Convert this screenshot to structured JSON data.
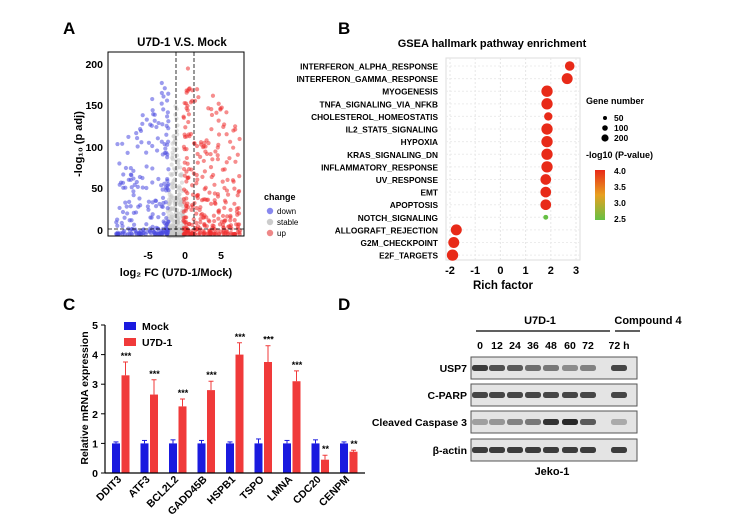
{
  "panel_letters": {
    "A": "A",
    "B": "B",
    "C": "C",
    "D": "D"
  },
  "volcano": {
    "title": "U7D-1 V.S. Mock",
    "xlabel": "log₂ FC (U7D-1/Mock)",
    "ylabel": "-log₁₀ (p adj)",
    "xticks": [
      "-5",
      "0",
      "5"
    ],
    "yticks": [
      "0",
      "50",
      "100",
      "150",
      "200"
    ],
    "legend_title": "change",
    "legend": [
      {
        "label": "down",
        "color": "#4444dd"
      },
      {
        "label": "stable",
        "color": "#bbbbbb"
      },
      {
        "label": "up",
        "color": "#ee3333"
      }
    ]
  },
  "gsea": {
    "title": "GSEA hallmark pathway enrichment",
    "xlabel": "Rich factor",
    "xticks": [
      "-2",
      "-1",
      "0",
      "1",
      "2",
      "3"
    ],
    "size_legend_title": "Gene number",
    "size_legend": [
      "50",
      "100",
      "200"
    ],
    "color_legend_title": "-log10 (P-value)",
    "color_legend_ticks": [
      "4.0",
      "3.5",
      "3.0",
      "2.5"
    ]
  },
  "qpcr": {
    "ylabel": "Relative mRNA expression",
    "yticks": [
      "0",
      "1",
      "2",
      "3",
      "4",
      "5"
    ],
    "legend": [
      {
        "label": "Mock",
        "color": "#1a1adf"
      },
      {
        "label": "U7D-1",
        "color": "#f03a3a"
      }
    ]
  },
  "blot": {
    "group_labels": [
      "U7D-1",
      "Compound 4"
    ],
    "timepoints": [
      "0",
      "12",
      "24",
      "36",
      "48",
      "60",
      "72",
      "72 h"
    ],
    "rows": [
      "USP7",
      "C-PARP",
      "Cleaved Caspase 3",
      "β-actin"
    ],
    "cell_line": "Jeko-1"
  },
  "chart_data": [
    {
      "type": "scatter",
      "title": "U7D-1 V.S. Mock",
      "xlabel": "log2 FC (U7D-1/Mock)",
      "ylabel": "-log10 (p adj)",
      "xlim": [
        -9,
        9
      ],
      "ylim": [
        0,
        210
      ],
      "series": [
        {
          "name": "down"
        },
        {
          "name": "stable"
        },
        {
          "name": "up"
        }
      ]
    },
    {
      "type": "scatter",
      "title": "GSEA hallmark pathway enrichment",
      "xlabel": "Rich factor",
      "xlim": [
        -2,
        3
      ],
      "categories": [
        "INTERFERON_ALPHA_RESPONSE",
        "INTERFERON_GAMMA_RESPONSE",
        "MYOGENESIS",
        "TNFA_SIGNALING_VIA_NFKB",
        "CHOLESTEROL_HOMEOSTATIS",
        "IL2_STAT5_SIGNALING",
        "HYPOXIA",
        "KRAS_SIGNALING_DN",
        "INFLAMMATORY_RESPONSE",
        "UV_RESPONSE",
        "EMT",
        "APOPTOSIS",
        "NOTCH_SIGNALING",
        "ALLOGRAFT_REJECTION",
        "G2M_CHECKPOINT",
        "E2F_TARGETS"
      ],
      "values": [
        2.75,
        2.65,
        1.85,
        1.85,
        1.9,
        1.85,
        1.85,
        1.85,
        1.85,
        1.8,
        1.8,
        1.8,
        1.8,
        -1.75,
        -1.85,
        -1.9
      ],
      "sizes": [
        100,
        140,
        150,
        150,
        70,
        150,
        150,
        150,
        150,
        130,
        130,
        130,
        15,
        140,
        140,
        150
      ],
      "neglog10p": [
        4.0,
        4.0,
        4.0,
        4.0,
        4.0,
        4.0,
        4.0,
        4.0,
        4.0,
        4.0,
        4.0,
        4.0,
        2.5,
        4.0,
        4.0,
        4.0
      ]
    },
    {
      "type": "bar",
      "ylabel": "Relative mRNA expression",
      "ylim": [
        0,
        5
      ],
      "categories": [
        "DDIT3",
        "ATF3",
        "BCL2L2",
        "GADD45B",
        "HSPB1",
        "TSPO",
        "LMNA",
        "CDC20",
        "CENPM"
      ],
      "series": [
        {
          "name": "Mock",
          "values": [
            1,
            1,
            1,
            1,
            1,
            1,
            1,
            1,
            1
          ],
          "err": [
            0.05,
            0.1,
            0.12,
            0.1,
            0.05,
            0.15,
            0.1,
            0.12,
            0.05
          ]
        },
        {
          "name": "U7D-1",
          "values": [
            3.3,
            2.65,
            2.25,
            2.8,
            4.0,
            3.75,
            3.1,
            0.45,
            0.72
          ],
          "err": [
            0.45,
            0.5,
            0.25,
            0.3,
            0.4,
            0.55,
            0.35,
            0.15,
            0.05
          ]
        }
      ],
      "annotations": [
        "***",
        "***",
        "***",
        "***",
        "***",
        "***",
        "***",
        "**",
        "**"
      ]
    }
  ]
}
